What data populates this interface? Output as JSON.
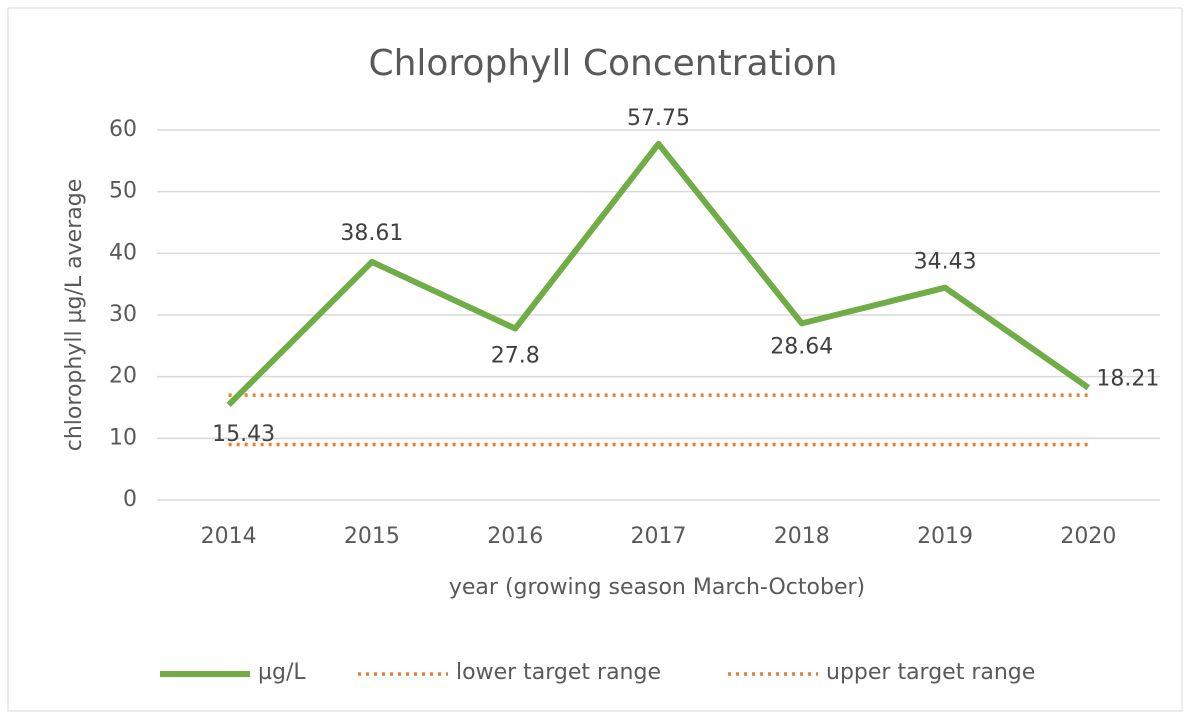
{
  "chart_data": {
    "type": "line",
    "title": "Chlorophyll Concentration",
    "x_label": "year (growing season March-October)",
    "y_label": "chlorophyll µg/L average",
    "categories": [
      "2014",
      "2015",
      "2016",
      "2017",
      "2018",
      "2019",
      "2020"
    ],
    "series": [
      {
        "name": "µg/L",
        "color": "#70ad47",
        "style": "solid",
        "data_labels": true,
        "values": [
          15.43,
          38.61,
          27.8,
          57.75,
          28.64,
          34.43,
          18.21
        ]
      },
      {
        "name": "lower target range",
        "color": "#ed7d31",
        "style": "dotted",
        "values": [
          9,
          9,
          9,
          9,
          9,
          9,
          9
        ]
      },
      {
        "name": "upper target range",
        "color": "#ed7d31",
        "style": "dotted",
        "values": [
          17,
          17,
          17,
          17,
          17,
          17,
          17
        ]
      }
    ],
    "ylim": [
      0,
      60
    ],
    "yticks": [
      0,
      10,
      20,
      30,
      40,
      50,
      60
    ],
    "grid": true,
    "legend": "bottom"
  }
}
